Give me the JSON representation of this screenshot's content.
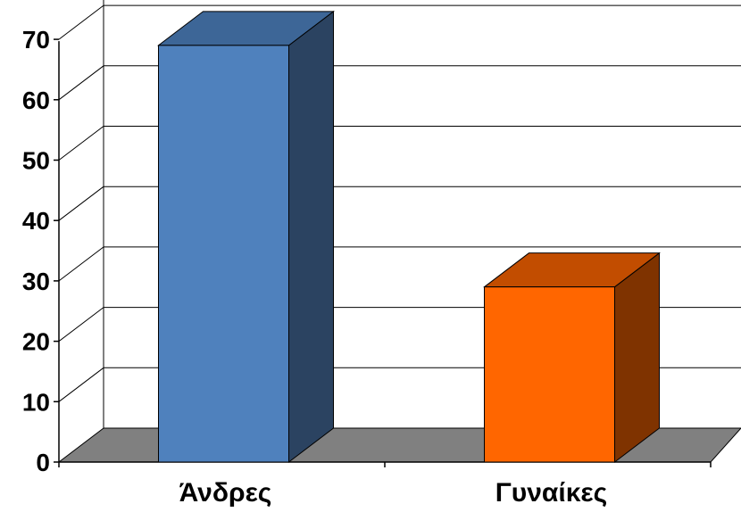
{
  "chart_data": {
    "type": "bar",
    "categories": [
      "Άνδρες",
      "Γυναίκες"
    ],
    "values": [
      69,
      29
    ],
    "title": "",
    "xlabel": "",
    "ylabel": "",
    "ylim": [
      0,
      70
    ],
    "yticks": [
      "0",
      "10",
      "20",
      "30",
      "40",
      "50",
      "60",
      "70"
    ],
    "grid": true,
    "three_d": true,
    "colors": {
      "bars": [
        {
          "front": "#4F81BD",
          "side": "#2B4361",
          "top": "#3D6697"
        },
        {
          "front": "#FF6600",
          "side": "#7F3300",
          "top": "#C24D00"
        }
      ],
      "floor": "#808080",
      "grid": "#000000"
    }
  }
}
